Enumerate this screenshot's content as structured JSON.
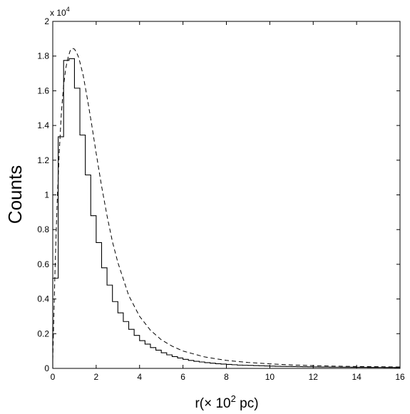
{
  "chart_data": {
    "type": "histogram-with-fit",
    "title": "",
    "xlabel": "r(× 10² pc)",
    "xlabel_parts": {
      "prefix": "r(× 10",
      "superscript": "2",
      "suffix": " pc)"
    },
    "ylabel": "Counts",
    "y_multiplier_label": {
      "base": "x 10",
      "exponent": "4"
    },
    "xlim": [
      0,
      16
    ],
    "ylim": [
      0,
      2
    ],
    "x_ticks": [
      0,
      2,
      4,
      6,
      8,
      10,
      12,
      14,
      16
    ],
    "y_ticks": [
      0,
      0.2,
      0.4,
      0.6,
      0.8,
      1,
      1.2,
      1.4,
      1.6,
      1.8,
      2
    ],
    "y_tick_labels": [
      "0",
      "0.2",
      "0.4",
      "0.6",
      "0.8",
      "1",
      "1.2",
      "1.4",
      "1.6",
      "1.8",
      "2"
    ],
    "x_tick_labels": [
      "0",
      "2",
      "4",
      "6",
      "8",
      "10",
      "12",
      "14",
      "16"
    ],
    "grid": false,
    "histogram": {
      "bin_width": 0.25,
      "x_start": 0,
      "values": [
        0.52,
        1.335,
        1.775,
        1.785,
        1.615,
        1.345,
        1.115,
        0.88,
        0.725,
        0.58,
        0.48,
        0.385,
        0.32,
        0.27,
        0.225,
        0.19,
        0.16,
        0.14,
        0.12,
        0.105,
        0.09,
        0.078,
        0.068,
        0.06,
        0.052,
        0.046,
        0.041,
        0.037,
        0.033,
        0.03,
        0.027,
        0.025,
        0.023,
        0.021,
        0.019,
        0.018,
        0.017,
        0.016,
        0.015,
        0.014,
        0.013,
        0.012,
        0.0115,
        0.011,
        0.0105,
        0.01,
        0.0095,
        0.009,
        0.0085,
        0.008,
        0.0078,
        0.0075,
        0.0072,
        0.007,
        0.0068,
        0.0066,
        0.0064,
        0.0062,
        0.006,
        0.0058,
        0.0056,
        0.0054,
        0.0052,
        0.005
      ]
    },
    "fit_curve": {
      "style": "dashed",
      "x": [
        0,
        0.1,
        0.2,
        0.3,
        0.4,
        0.5,
        0.6,
        0.7,
        0.8,
        0.9,
        1.0,
        1.1,
        1.2,
        1.4,
        1.6,
        1.8,
        2.0,
        2.25,
        2.5,
        2.75,
        3.0,
        3.5,
        4.0,
        4.5,
        5.0,
        5.5,
        6.0,
        7.0,
        8.0,
        9.0,
        10.0,
        11.0,
        12.0,
        13.0,
        14.0,
        15.0,
        16.0
      ],
      "y": [
        0.05,
        0.55,
        0.95,
        1.25,
        1.48,
        1.63,
        1.73,
        1.79,
        1.83,
        1.845,
        1.84,
        1.82,
        1.79,
        1.69,
        1.55,
        1.4,
        1.24,
        1.05,
        0.88,
        0.73,
        0.61,
        0.42,
        0.3,
        0.22,
        0.165,
        0.128,
        0.1,
        0.066,
        0.046,
        0.034,
        0.026,
        0.02,
        0.016,
        0.013,
        0.011,
        0.0095,
        0.008
      ]
    }
  }
}
